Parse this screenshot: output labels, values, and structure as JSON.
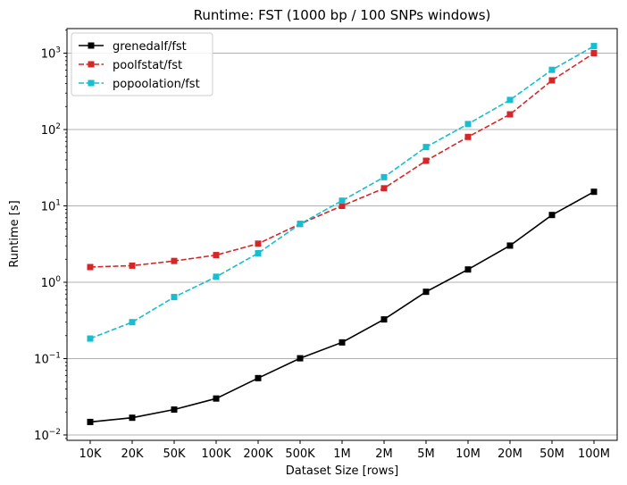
{
  "chart_data": {
    "type": "line",
    "title": "Runtime:  FST (1000 bp / 100 SNPs windows)",
    "xlabel": "Dataset Size  [rows]",
    "ylabel": "Runtime  [s]",
    "yscale": "log",
    "ylim": [
      0.0085,
      2100
    ],
    "grid": "y-major",
    "legend_position": "top-left",
    "categories": [
      "10K",
      "20K",
      "50K",
      "100K",
      "200K",
      "500K",
      "1M",
      "2M",
      "5M",
      "10M",
      "20M",
      "50M",
      "100M"
    ],
    "y_ticks": [
      {
        "base": "10",
        "exp": "−2",
        "value": 0.01
      },
      {
        "base": "10",
        "exp": "−1",
        "value": 0.1
      },
      {
        "base": "10",
        "exp": "0",
        "value": 1
      },
      {
        "base": "10",
        "exp": "1",
        "value": 10
      },
      {
        "base": "10",
        "exp": "2",
        "value": 100
      },
      {
        "base": "10",
        "exp": "3",
        "value": 1000
      }
    ],
    "series": [
      {
        "name": "grenedalf/fst",
        "color": "#000000",
        "dashed": false,
        "values": [
          0.0148,
          0.0168,
          0.0215,
          0.03,
          0.0555,
          0.101,
          0.163,
          0.326,
          0.75,
          1.47,
          3.02,
          7.6,
          15.3
        ]
      },
      {
        "name": "poolfstat/fst",
        "color": "#d62728",
        "dashed": true,
        "values": [
          1.58,
          1.65,
          1.9,
          2.27,
          3.2,
          5.8,
          10.0,
          17.0,
          39.0,
          80.0,
          158.0,
          440.0,
          1000.0
        ]
      },
      {
        "name": "popoolation/fst",
        "color": "#17becf",
        "dashed": true,
        "values": [
          0.183,
          0.3,
          0.64,
          1.18,
          2.4,
          5.8,
          11.7,
          23.8,
          59.0,
          118.0,
          244.0,
          605.0,
          1240.0
        ]
      }
    ]
  }
}
